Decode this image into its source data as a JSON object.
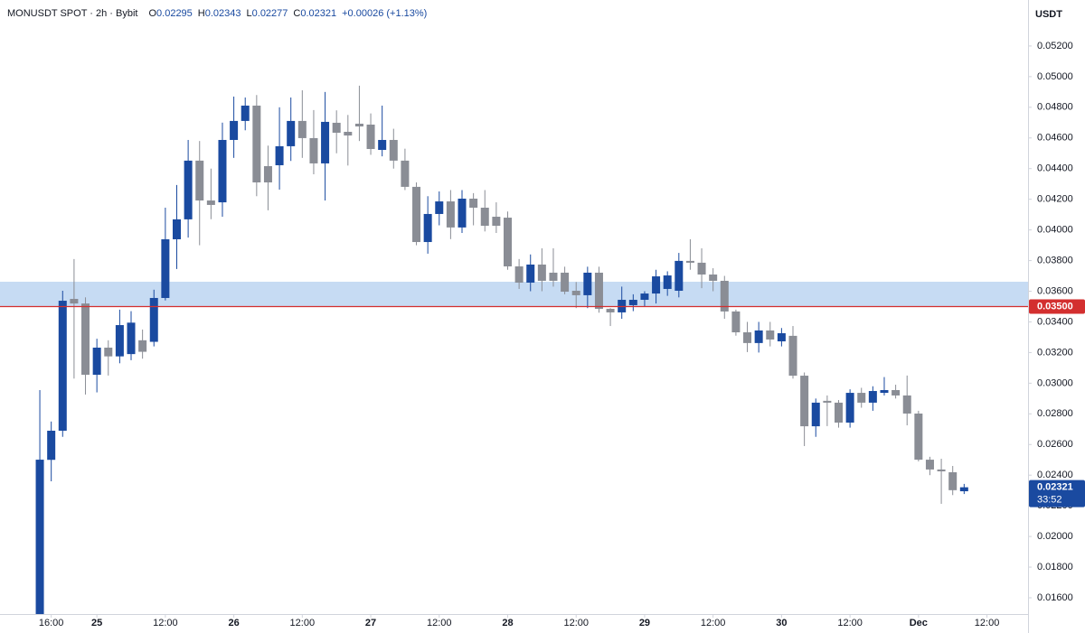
{
  "chart_data": {
    "type": "candlestick",
    "title": "MONUSDT SPOT · 2h · Bybit",
    "ohlc": [
      {
        "label": "O",
        "value": "0.02295"
      },
      {
        "label": "H",
        "value": "0.02343"
      },
      {
        "label": "L",
        "value": "0.02277"
      },
      {
        "label": "C",
        "value": "0.02321"
      }
    ],
    "change": "+0.00026 (+1.13%)",
    "y_axis_label": "USDT",
    "up_color": "#1a4aa0",
    "down_color": "#8a8d95",
    "grid": false,
    "x": [
      0,
      1,
      2,
      3,
      4,
      5,
      6,
      7,
      8,
      9,
      10,
      11,
      12,
      13,
      14,
      15,
      16,
      17,
      18,
      19,
      20,
      21,
      22,
      23,
      24,
      25,
      26,
      27,
      28,
      29,
      30,
      31,
      32,
      33,
      34,
      35,
      36,
      37,
      38,
      39,
      40,
      41,
      42,
      43,
      44,
      45,
      46,
      47,
      48,
      49,
      50,
      51,
      52,
      53,
      54,
      55,
      56,
      57,
      58,
      59,
      60,
      61,
      62,
      63,
      64,
      65,
      66,
      67,
      68,
      69,
      70,
      71,
      72,
      73,
      74,
      75,
      76,
      77,
      78,
      79,
      80,
      81
    ],
    "open": [
      0.014,
      0.025,
      0.0269,
      0.0355,
      0.0352,
      0.03055,
      0.03232,
      0.03175,
      0.0319,
      0.0328,
      0.0327,
      0.03556,
      0.03939,
      0.04069,
      0.04452,
      0.04192,
      0.0418,
      0.04587,
      0.04711,
      0.04811,
      0.04416,
      0.04422,
      0.04546,
      0.04711,
      0.04599,
      0.04434,
      0.04699,
      0.0464,
      0.04693,
      0.04687,
      0.04522,
      0.04587,
      0.04452,
      0.04281,
      0.03921,
      0.04104,
      0.04186,
      0.04016,
      0.04204,
      0.04145,
      0.04086,
      0.0408,
      0.03762,
      0.03656,
      0.03774,
      0.03721,
      0.03721,
      0.03603,
      0.03574,
      0.03721,
      0.03485,
      0.03462,
      0.03509,
      0.03544,
      0.03585,
      0.03615,
      0.03603,
      0.03798,
      0.03786,
      0.03709,
      0.03668,
      0.03468,
      0.03332,
      0.03262,
      0.03344,
      0.03273,
      0.03309,
      0.03049,
      0.02719,
      0.02885,
      0.02873,
      0.02743,
      0.02937,
      0.02873,
      0.02937,
      0.02955,
      0.0292,
      0.02802,
      0.02501,
      0.02437,
      0.02419,
      0.02295
    ],
    "high": [
      0.02955,
      0.0275,
      0.03603,
      0.0381,
      0.0356,
      0.0329,
      0.0328,
      0.0348,
      0.0347,
      0.0335,
      0.0361,
      0.04145,
      0.04293,
      0.04587,
      0.0458,
      0.044,
      0.047,
      0.0487,
      0.04864,
      0.0488,
      0.0455,
      0.048,
      0.04864,
      0.04911,
      0.04782,
      0.049,
      0.0478,
      0.0475,
      0.04941,
      0.0476,
      0.04811,
      0.0466,
      0.0453,
      0.0431,
      0.0422,
      0.04251,
      0.0426,
      0.0426,
      0.0424,
      0.0426,
      0.0418,
      0.0412,
      0.0381,
      0.0384,
      0.0388,
      0.0388,
      0.0376,
      0.0366,
      0.0376,
      0.0376,
      0.0349,
      0.0363,
      0.0358,
      0.036,
      0.0374,
      0.0373,
      0.0385,
      0.03939,
      0.0388,
      0.0375,
      0.037,
      0.0348,
      0.034,
      0.034,
      0.034,
      0.0336,
      0.03373,
      0.0307,
      0.029,
      0.0292,
      0.0289,
      0.0296,
      0.0297,
      0.0298,
      0.0304,
      0.0299,
      0.0305,
      0.0282,
      0.0252,
      0.02507,
      0.0246,
      0.02343
    ],
    "low": [
      0.014,
      0.0236,
      0.0265,
      0.0303,
      0.02926,
      0.0294,
      0.0305,
      0.0313,
      0.0315,
      0.0316,
      0.0324,
      0.0354,
      0.03745,
      0.0395,
      0.039,
      0.0407,
      0.04086,
      0.0447,
      0.0465,
      0.0422,
      0.04128,
      0.04263,
      0.0445,
      0.0447,
      0.04363,
      0.04192,
      0.045,
      0.0442,
      0.0458,
      0.0449,
      0.0448,
      0.044,
      0.0426,
      0.039,
      0.03845,
      0.0403,
      0.0394,
      0.0398,
      0.0403,
      0.0399,
      0.0398,
      0.0374,
      0.03615,
      0.036,
      0.036,
      0.0363,
      0.0358,
      0.0349,
      0.0349,
      0.0346,
      0.03373,
      0.0342,
      0.0347,
      0.035,
      0.0352,
      0.0357,
      0.0356,
      0.0374,
      0.0362,
      0.036,
      0.0342,
      0.0331,
      0.03203,
      0.032,
      0.0324,
      0.0324,
      0.0303,
      0.0259,
      0.0265,
      0.0272,
      0.0271,
      0.0271,
      0.0284,
      0.0282,
      0.0292,
      0.029,
      0.02725,
      0.0249,
      0.024,
      0.02213,
      0.0227,
      0.02277
    ],
    "close": [
      0.02501,
      0.0269,
      0.03538,
      0.0352,
      0.03055,
      0.03232,
      0.03175,
      0.03379,
      0.03395,
      0.03205,
      0.03556,
      0.03939,
      0.04069,
      0.04452,
      0.04192,
      0.04163,
      0.04587,
      0.04711,
      0.04811,
      0.0431,
      0.0431,
      0.04546,
      0.04711,
      0.04599,
      0.04434,
      0.04705,
      0.04634,
      0.04616,
      0.04675,
      0.04528,
      0.04587,
      0.04452,
      0.04281,
      0.03921,
      0.04104,
      0.04186,
      0.04016,
      0.04204,
      0.04145,
      0.04027,
      0.04027,
      0.03762,
      0.03656,
      0.03774,
      0.03668,
      0.03668,
      0.03597,
      0.03574,
      0.03721,
      0.03485,
      0.03462,
      0.03544,
      0.03544,
      0.03585,
      0.03697,
      0.03703,
      0.03798,
      0.03786,
      0.03709,
      0.03668,
      0.03468,
      0.03332,
      0.03262,
      0.03344,
      0.03285,
      0.03326,
      0.03049,
      0.02719,
      0.02873,
      0.02873,
      0.02743,
      0.02937,
      0.02873,
      0.02949,
      0.02955,
      0.0292,
      0.02802,
      0.02501,
      0.02437,
      0.02425,
      0.02302,
      0.02321
    ],
    "xlim": [
      -3.49,
      86.6
    ],
    "xticks": [
      {
        "value": 1,
        "label": "16:00"
      },
      {
        "value": 5,
        "label": "25"
      },
      {
        "value": 11,
        "label": "12:00"
      },
      {
        "value": 17,
        "label": "26"
      },
      {
        "value": 23,
        "label": "12:00"
      },
      {
        "value": 29,
        "label": "27"
      },
      {
        "value": 35,
        "label": "12:00"
      },
      {
        "value": 41,
        "label": "28"
      },
      {
        "value": 47,
        "label": "12:00"
      },
      {
        "value": 53,
        "label": "29"
      },
      {
        "value": 59,
        "label": "12:00"
      },
      {
        "value": 65,
        "label": "30"
      },
      {
        "value": 71,
        "label": "12:00"
      },
      {
        "value": 77,
        "label": "Dec"
      },
      {
        "value": 83,
        "label": "12:00"
      }
    ],
    "ylim": [
      0.01494,
      0.055
    ],
    "yticks": [
      {
        "value": 0.016,
        "label": "0.01600"
      },
      {
        "value": 0.018,
        "label": "0.01800"
      },
      {
        "value": 0.02,
        "label": "0.02000"
      },
      {
        "value": 0.022,
        "label": "0.02200"
      },
      {
        "value": 0.024,
        "label": "0.02400"
      },
      {
        "value": 0.026,
        "label": "0.02600"
      },
      {
        "value": 0.028,
        "label": "0.02800"
      },
      {
        "value": 0.03,
        "label": "0.03000"
      },
      {
        "value": 0.032,
        "label": "0.03200"
      },
      {
        "value": 0.034,
        "label": "0.03400"
      },
      {
        "value": 0.036,
        "label": "0.03600"
      },
      {
        "value": 0.038,
        "label": "0.03800"
      },
      {
        "value": 0.04,
        "label": "0.04000"
      },
      {
        "value": 0.042,
        "label": "0.04200"
      },
      {
        "value": 0.044,
        "label": "0.04400"
      },
      {
        "value": 0.046,
        "label": "0.04600"
      },
      {
        "value": 0.048,
        "label": "0.04800"
      },
      {
        "value": 0.05,
        "label": "0.05000"
      },
      {
        "value": 0.052,
        "label": "0.05200"
      }
    ],
    "zone": {
      "from": 0.035,
      "to": 0.03662,
      "color": "#c6dbf3"
    },
    "level": {
      "value": 0.035,
      "label": "0.03500",
      "color": "#d32f2f"
    },
    "price_tag": {
      "value": 0.02321,
      "label": "0.02321",
      "countdown": "33:52",
      "color": "#1a4aa0"
    }
  }
}
